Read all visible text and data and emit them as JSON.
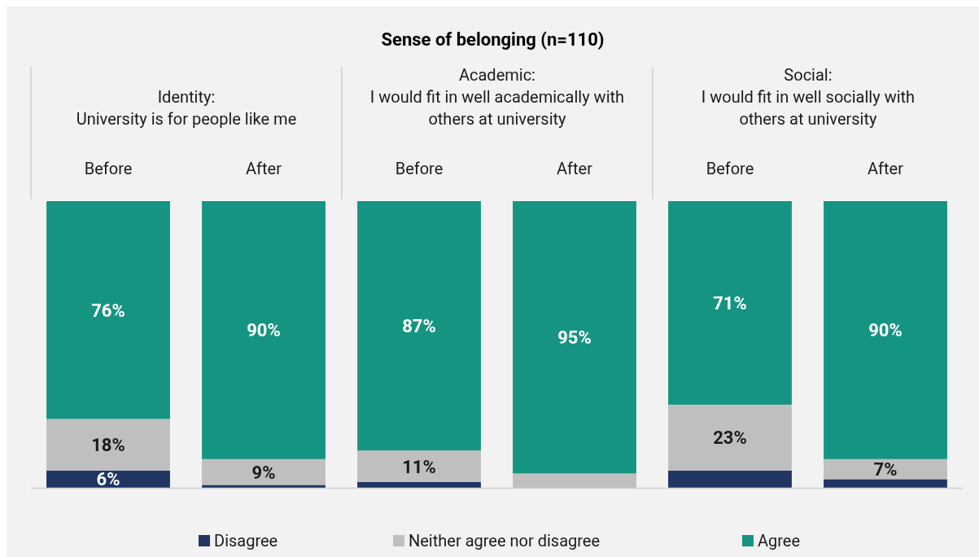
{
  "chart_data": {
    "type": "bar",
    "stacked": true,
    "title": "Sense of belonging (n=110)",
    "categories": [
      "Before",
      "After",
      "Before",
      "After",
      "Before",
      "After"
    ],
    "annotations": [
      "Identity:\nUniversity is for people like me",
      "Academic:\nI would fit in well academically with\nothers at university",
      "Social:\nI would fit in well socially with\nothers at university"
    ],
    "series": [
      {
        "name": "Disagree",
        "color": "#203564",
        "values": [
          6,
          1,
          2,
          0,
          6,
          3
        ],
        "value_labels": [
          "6%",
          null,
          null,
          null,
          null,
          null
        ]
      },
      {
        "name": "Neither agree nor disagree",
        "color": "#bfbfbf",
        "values": [
          18,
          9,
          11,
          5,
          23,
          7
        ],
        "value_labels": [
          "18%",
          "9%",
          "11%",
          null,
          "23%",
          "7%"
        ]
      },
      {
        "name": "Agree",
        "color": "#169482",
        "values": [
          76,
          90,
          87,
          95,
          71,
          90
        ],
        "value_labels": [
          "76%",
          "90%",
          "87%",
          "95%",
          "71%",
          "90%"
        ]
      }
    ],
    "legend": "bottom"
  }
}
